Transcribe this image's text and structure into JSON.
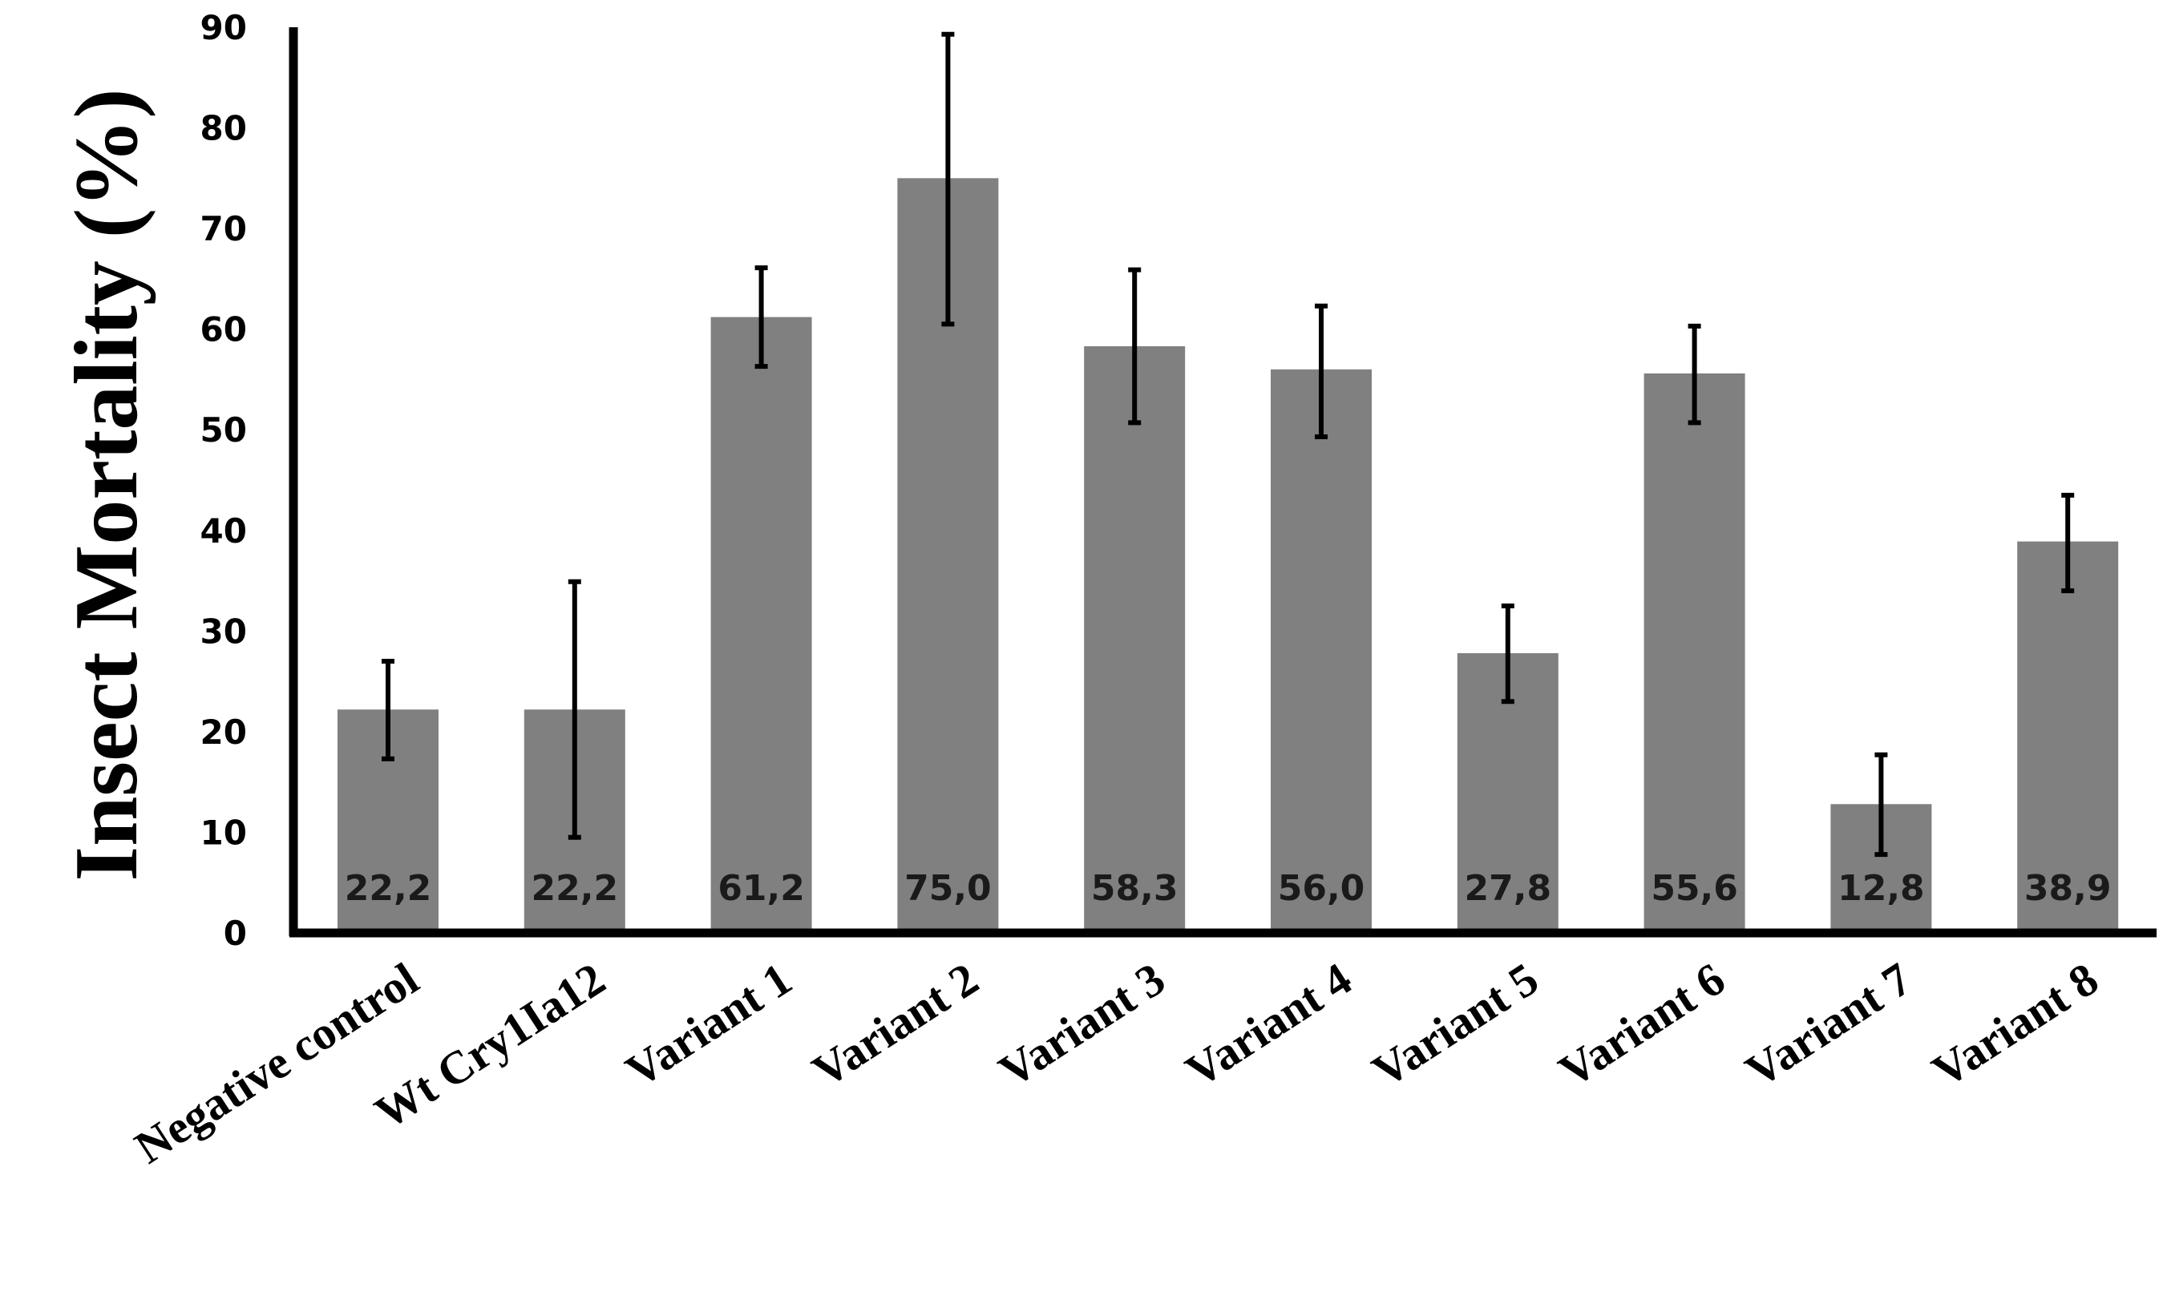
{
  "chart_data": {
    "type": "bar",
    "ylabel": "Insect Mortality (%)",
    "xlabel": "",
    "ylim": [
      0,
      90
    ],
    "yticks": [
      "0",
      "10",
      "20",
      "30",
      "40",
      "50",
      "60",
      "70",
      "80",
      "90"
    ],
    "grid": false,
    "categories": [
      "Negative control",
      "Wt Cry1Ia12",
      "Variant 1",
      "Variant 2",
      "Variant 3",
      "Variant 4",
      "Variant 5",
      "Variant 6",
      "Variant 7",
      "Variant 8"
    ],
    "values": [
      22.2,
      22.2,
      61.2,
      75.0,
      58.3,
      56.0,
      27.8,
      55.6,
      12.8,
      38.9
    ],
    "value_labels": [
      "22,2",
      "22,2",
      "61,2",
      "75,0",
      "58,3",
      "56,0",
      "27,8",
      "55,6",
      "12,8",
      "38,9"
    ],
    "error_low": [
      17.3,
      9.5,
      56.3,
      60.5,
      50.7,
      49.3,
      23.0,
      50.7,
      7.8,
      34.0
    ],
    "error_high": [
      27.0,
      34.9,
      66.1,
      89.3,
      65.9,
      62.3,
      32.5,
      60.3,
      17.7,
      43.5
    ],
    "colors": {
      "bar": "#808080",
      "axis": "#000000",
      "error_bar": "#000000",
      "text": "#1a1a1a"
    }
  }
}
